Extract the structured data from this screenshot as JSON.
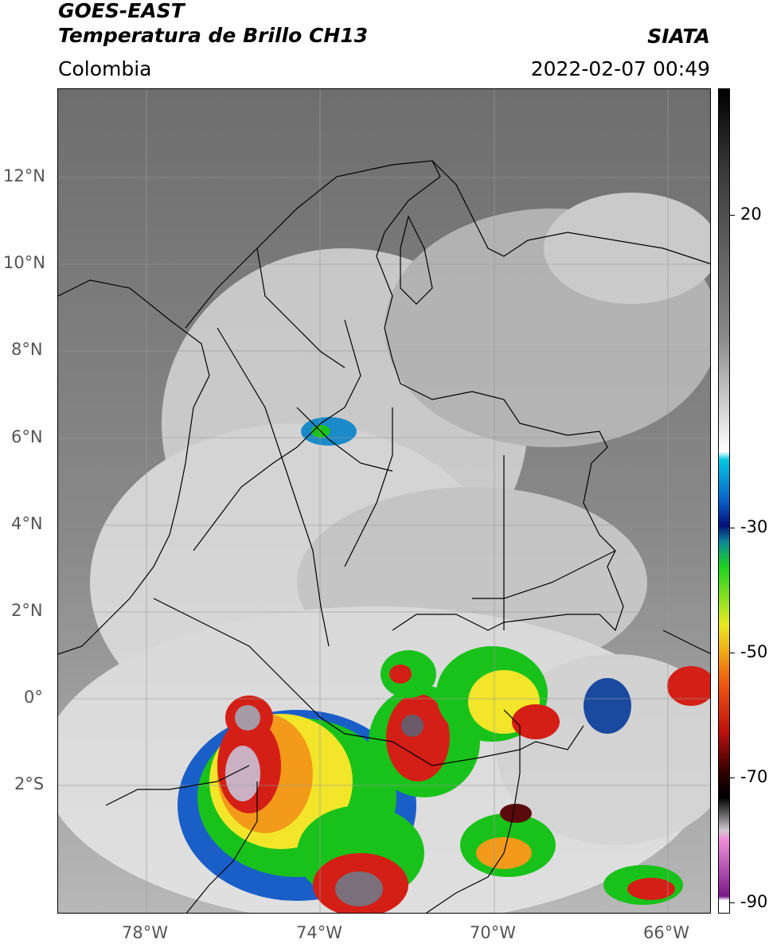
{
  "header": {
    "satellite": "GOES-EAST",
    "product": "Temperatura de Brillo CH13",
    "region": "Colombia",
    "organization": "SIATA",
    "datetime": "2022-02-07 00:49"
  },
  "map": {
    "lat_labels": [
      "12°N",
      "10°N",
      "8°N",
      "6°N",
      "4°N",
      "2°N",
      "0°",
      "2°S"
    ],
    "lon_labels": [
      "78°W",
      "74°W",
      "70°W",
      "66°W"
    ],
    "extent": {
      "lon_min": -80,
      "lon_max": -65,
      "lat_min": -4.9,
      "lat_max": 14
    },
    "gridlines": true
  },
  "colorbar": {
    "labels": [
      "20",
      "-30",
      "-50",
      "-70",
      "-90"
    ],
    "unit_range": [
      -92,
      35
    ]
  },
  "colors": {
    "cloud_white": "#e6e6e6",
    "background_gray": "#7a7a7a",
    "cyan": "#00bcd4",
    "blue": "#0a3fa8",
    "green": "#19c21a",
    "yellow": "#f3e62a",
    "orange": "#f39a1a",
    "red": "#d41f16",
    "dark_red": "#5a0a0a",
    "pink": "#e070c8",
    "purple": "#8a2a9a"
  }
}
